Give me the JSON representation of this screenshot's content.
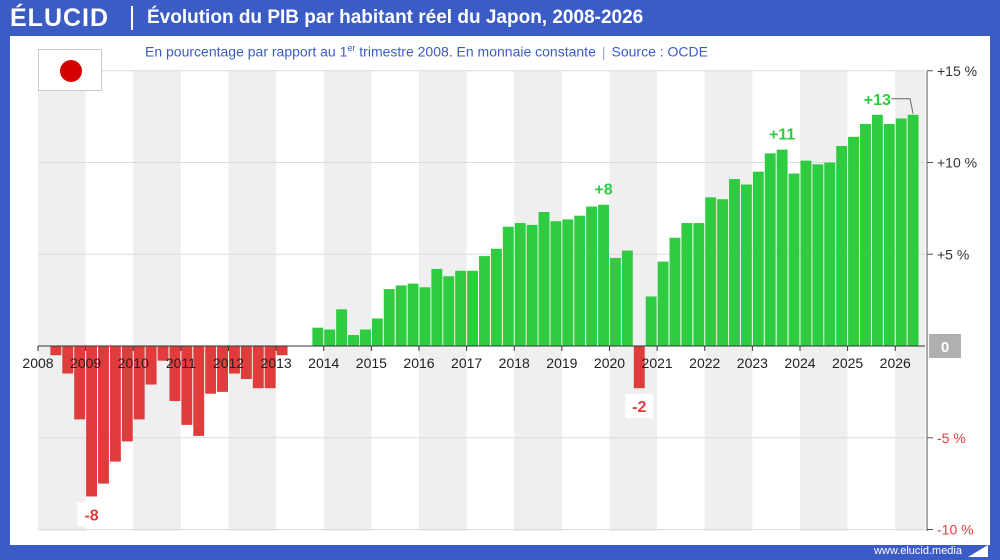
{
  "brand": {
    "logo": "ÉLUCID",
    "url": "www.elucid.media"
  },
  "header": {
    "title": "Évolution du PIB par habitant réel du Japon, 2008-2026",
    "subtitle_pre": "En pourcentage par rapport au 1",
    "subtitle_sup": "er",
    "subtitle_post": " trimestre 2008. En monnaie constante",
    "subtitle_sep": "|",
    "source": "Source : OCDE"
  },
  "flag": {
    "country": "Japon",
    "icon": "japan-flag-icon",
    "disc_color": "#d40000"
  },
  "colors": {
    "positive": "#2ecc40",
    "negative": "#e03c3c",
    "positive_label": "#2ecc40",
    "negative_label": "#e03c3c",
    "frame": "#3b5cc4",
    "zero_badge": "#b0b0b0"
  },
  "chart_data": {
    "type": "bar",
    "title": "Évolution du PIB par habitant réel du Japon, 2008-2026",
    "xlabel": "",
    "ylabel": "",
    "ylim": [
      -10,
      15
    ],
    "grid": true,
    "year_labels": [
      "2008",
      "2009",
      "2010",
      "2011",
      "2012",
      "2013",
      "2014",
      "2015",
      "2016",
      "2017",
      "2018",
      "2019",
      "2020",
      "2021",
      "2022",
      "2023",
      "2024",
      "2025",
      "2026"
    ],
    "y_ticks": [
      {
        "value": 15,
        "label": "+15 %"
      },
      {
        "value": 10,
        "label": "+10 %"
      },
      {
        "value": 5,
        "label": "+5 %"
      },
      {
        "value": 0,
        "label": "0"
      },
      {
        "value": -5,
        "label": "-5 %"
      },
      {
        "value": -10,
        "label": "-10 %"
      }
    ],
    "categories": [
      "2008T1",
      "2008T2",
      "2008T3",
      "2008T4",
      "2009T1",
      "2009T2",
      "2009T3",
      "2009T4",
      "2010T1",
      "2010T2",
      "2010T3",
      "2010T4",
      "2011T1",
      "2011T2",
      "2011T3",
      "2011T4",
      "2012T1",
      "2012T2",
      "2012T3",
      "2012T4",
      "2013T1",
      "2013T2",
      "2013T3",
      "2013T4",
      "2014T1",
      "2014T2",
      "2014T3",
      "2014T4",
      "2015T1",
      "2015T2",
      "2015T3",
      "2015T4",
      "2016T1",
      "2016T2",
      "2016T3",
      "2016T4",
      "2017T1",
      "2017T2",
      "2017T3",
      "2017T4",
      "2018T1",
      "2018T2",
      "2018T3",
      "2018T4",
      "2019T1",
      "2019T2",
      "2019T3",
      "2019T4",
      "2020T1",
      "2020T2",
      "2020T3",
      "2020T4",
      "2021T1",
      "2021T2",
      "2021T3",
      "2021T4",
      "2022T1",
      "2022T2",
      "2022T3",
      "2022T4",
      "2023T1",
      "2023T2",
      "2023T3",
      "2023T4",
      "2024T1",
      "2024T2",
      "2024T3",
      "2024T4",
      "2025T1",
      "2025T2",
      "2025T3",
      "2025T4"
    ],
    "values": [
      0.0,
      -0.5,
      -1.5,
      -4.0,
      -8.2,
      -7.5,
      -6.3,
      -5.2,
      -4.0,
      -2.1,
      -0.8,
      -3.0,
      -4.3,
      -4.9,
      -2.6,
      -2.5,
      -1.5,
      -1.8,
      -2.3,
      -2.3,
      -0.5,
      0.0,
      0.0,
      1.0,
      0.9,
      2.0,
      0.6,
      0.9,
      1.5,
      3.1,
      3.3,
      3.4,
      3.2,
      4.2,
      3.8,
      4.1,
      4.1,
      4.9,
      5.3,
      6.5,
      6.7,
      6.6,
      7.3,
      6.8,
      6.9,
      7.1,
      7.6,
      7.7,
      4.8,
      5.2,
      -2.3,
      2.7,
      4.6,
      5.9,
      6.7,
      6.7,
      8.1,
      8.0,
      9.1,
      8.8,
      9.5,
      10.5,
      10.7,
      9.4,
      10.1,
      9.9,
      10.0,
      10.9,
      11.4,
      12.1,
      12.6,
      12.1
    ],
    "extra_values": [
      12.4,
      12.6
    ],
    "annotations": [
      {
        "label": "-8",
        "category": "2009T1",
        "kind": "negative"
      },
      {
        "label": "+8",
        "category": "2019T4",
        "kind": "positive"
      },
      {
        "label": "-2",
        "category": "2020T3",
        "kind": "negative"
      },
      {
        "label": "+11",
        "category": "2023T3",
        "kind": "positive"
      },
      {
        "label": "+13",
        "category": "2025T3",
        "kind": "positive"
      }
    ]
  }
}
